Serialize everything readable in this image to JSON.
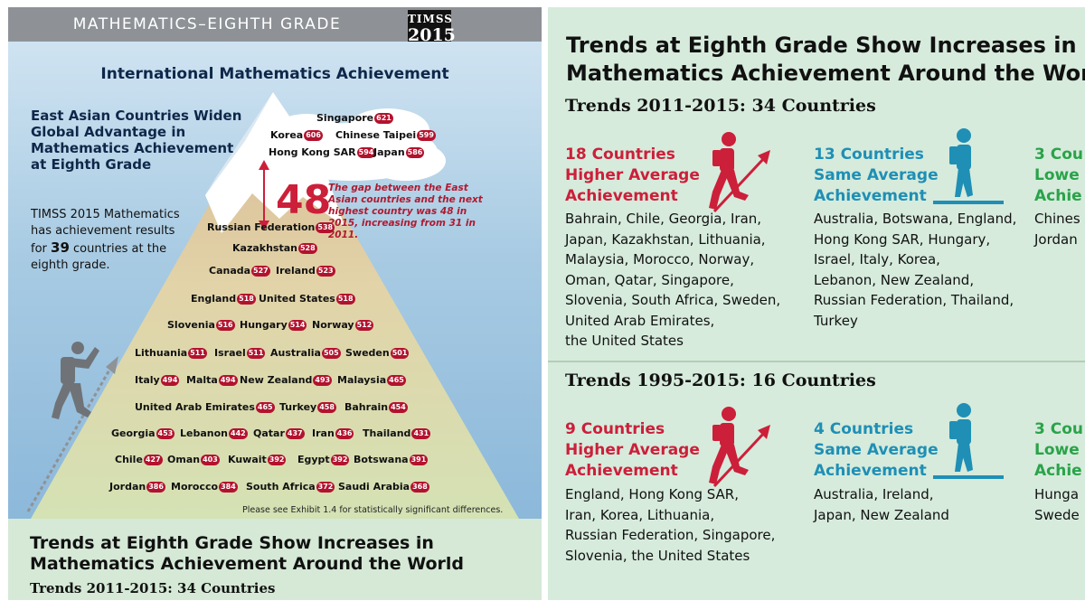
{
  "left": {
    "banner": "MATHEMATICS–EIGHTH GRADE",
    "logo_top": "TIMSS",
    "logo_year": "2015",
    "headline": "International Mathematics Achievement",
    "east_asia_heading": "East Asian Countries Widen Global Advantage in Mathematics Achievement at Eighth Grade",
    "body_pre": "TIMSS 2015 Mathematics has achievement results for ",
    "body_num": "39",
    "body_post": " countries at the eighth grade.",
    "gap_value": "48",
    "gap_note": "The gap between the East Asian countries and the next highest country was 48 in 2015, increasing from 31 in 2011.",
    "countries": [
      {
        "name": "Singapore",
        "score": "621"
      },
      {
        "name": "Korea",
        "score": "606"
      },
      {
        "name": "Chinese Taipei",
        "score": "599"
      },
      {
        "name": "Hong Kong SAR",
        "score": "594"
      },
      {
        "name": "Japan",
        "score": "586"
      },
      {
        "name": "Russian Federation",
        "score": "538"
      },
      {
        "name": "Kazakhstan",
        "score": "528"
      },
      {
        "name": "Canada",
        "score": "527"
      },
      {
        "name": "Ireland",
        "score": "523"
      },
      {
        "name": "England",
        "score": "518"
      },
      {
        "name": "United States",
        "score": "518"
      },
      {
        "name": "Slovenia",
        "score": "516"
      },
      {
        "name": "Hungary",
        "score": "514"
      },
      {
        "name": "Norway",
        "score": "512"
      },
      {
        "name": "Lithuania",
        "score": "511"
      },
      {
        "name": "Israel",
        "score": "511"
      },
      {
        "name": "Australia",
        "score": "505"
      },
      {
        "name": "Sweden",
        "score": "501"
      },
      {
        "name": "Italy",
        "score": "494"
      },
      {
        "name": "Malta",
        "score": "494"
      },
      {
        "name": "New Zealand",
        "score": "493"
      },
      {
        "name": "Malaysia",
        "score": "465"
      },
      {
        "name": "United Arab Emirates",
        "score": "465"
      },
      {
        "name": "Turkey",
        "score": "458"
      },
      {
        "name": "Bahrain",
        "score": "454"
      },
      {
        "name": "Georgia",
        "score": "453"
      },
      {
        "name": "Lebanon",
        "score": "442"
      },
      {
        "name": "Qatar",
        "score": "437"
      },
      {
        "name": "Iran",
        "score": "436"
      },
      {
        "name": "Thailand",
        "score": "431"
      },
      {
        "name": "Chile",
        "score": "427"
      },
      {
        "name": "Oman",
        "score": "403"
      },
      {
        "name": "Kuwait",
        "score": "392"
      },
      {
        "name": "Egypt",
        "score": "392"
      },
      {
        "name": "Botswana",
        "score": "391"
      },
      {
        "name": "Jordan",
        "score": "386"
      },
      {
        "name": "Morocco",
        "score": "384"
      },
      {
        "name": "South Africa",
        "score": "372"
      },
      {
        "name": "Saudi Arabia",
        "score": "368"
      }
    ],
    "exhibit_note": "Please see Exhibit 1.4 for statistically significant differences.",
    "trends_title_1": "Trends at Eighth Grade Show Increases in",
    "trends_title_2": "Mathematics Achievement Around the World",
    "trends_sub": "Trends 2011-2015: 34 Countries"
  },
  "right": {
    "title_1": "Trends at Eighth Grade Show Increases in",
    "title_2": "Mathematics Achievement Around the World",
    "sec1": "Trends 2011-2015: 34 Countries",
    "sec1_higher": {
      "h1": "18 Countries",
      "h2": "Higher Average",
      "h3": "Achievement",
      "lines": [
        "Bahrain, Chile, Georgia, Iran,",
        "Japan, Kazakhstan, Lithuania,",
        "Malaysia, Morocco, Norway,",
        "Oman, Qatar, Singapore,",
        "Slovenia, South Africa, Sweden,",
        "United Arab Emirates,",
        "the United States"
      ]
    },
    "sec1_same": {
      "h1": "13 Countries",
      "h2": "Same Average",
      "h3": "Achievement",
      "lines": [
        "Australia, Botswana, England,",
        "Hong Kong SAR, Hungary,",
        "Israel, Italy, Korea,",
        "Lebanon, New Zealand,",
        "Russian Federation, Thailand,",
        "Turkey"
      ]
    },
    "sec1_lower": {
      "h1": "3 Cou",
      "h2": "Lowe",
      "h3": "Achie",
      "lines": [
        "Chines",
        "Jordan"
      ]
    },
    "sec2": "Trends 1995-2015: 16 Countries",
    "sec2_higher": {
      "h1": "9 Countries",
      "h2": "Higher Average",
      "h3": "Achievement",
      "lines": [
        "England, Hong Kong SAR,",
        "Iran, Korea, Lithuania,",
        "Russian Federation, Singapore,",
        "Slovenia, the United States"
      ]
    },
    "sec2_same": {
      "h1": "4 Countries",
      "h2": "Same Average",
      "h3": "Achievement",
      "lines": [
        "Australia, Ireland,",
        "Japan, New Zealand"
      ]
    },
    "sec2_lower": {
      "h1": "3 Cou",
      "h2": "Lowe",
      "h3": "Achie",
      "lines": [
        "Hunga",
        "Swede"
      ]
    }
  },
  "colors": {
    "higher": "#cc1f3a",
    "same": "#1f8fb5",
    "lower": "#2aa349",
    "navy": "#0f2749"
  }
}
